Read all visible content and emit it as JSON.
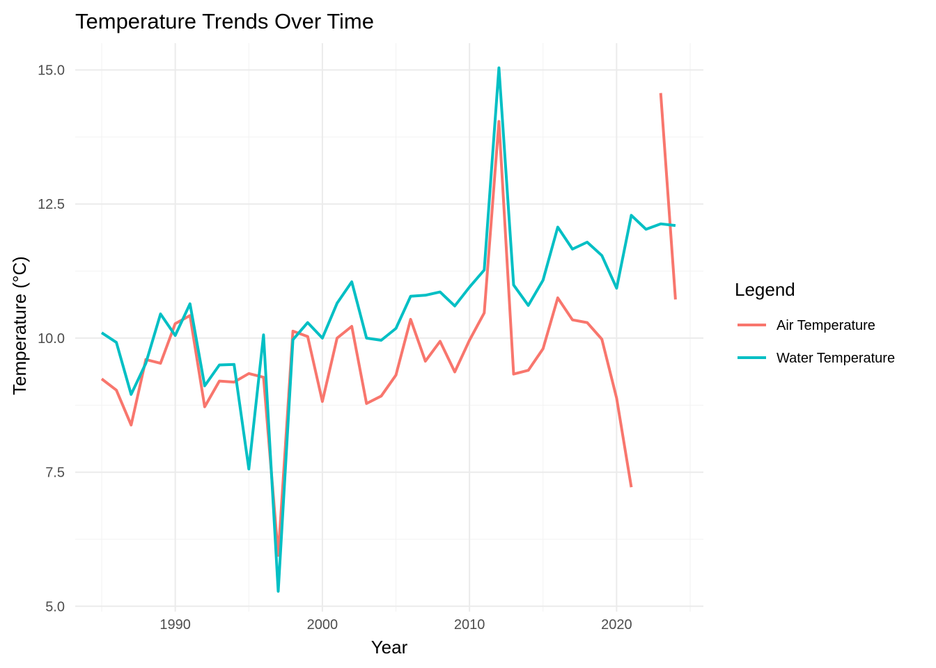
{
  "chart_data": {
    "type": "line",
    "title": "Temperature Trends Over Time",
    "xlabel": "Year",
    "ylabel": "Temperature (°C)",
    "xlim": [
      1983.2,
      2025.9
    ],
    "ylim": [
      4.9,
      15.5
    ],
    "x_ticks": [
      1990,
      2000,
      2010,
      2020
    ],
    "x_tick_labels": [
      "1990",
      "2000",
      "2010",
      "2020"
    ],
    "x_minor_ticks": [
      1985,
      1995,
      2005,
      2015,
      2025
    ],
    "y_ticks": [
      5.0,
      7.5,
      10.0,
      12.5,
      15.0
    ],
    "y_tick_labels": [
      "5.0",
      "7.5",
      "10.0",
      "12.5",
      "15.0"
    ],
    "y_minor_ticks": [
      6.25,
      8.75,
      11.25,
      13.75
    ],
    "grid": true,
    "legend": {
      "title": "Legend",
      "position": "right"
    },
    "x": [
      1985,
      1986,
      1987,
      1988,
      1989,
      1990,
      1991,
      1992,
      1993,
      1994,
      1995,
      1996,
      1997,
      1998,
      1999,
      2000,
      2001,
      2002,
      2003,
      2004,
      2005,
      2006,
      2007,
      2008,
      2009,
      2010,
      2011,
      2012,
      2013,
      2014,
      2015,
      2016,
      2017,
      2018,
      2019,
      2020,
      2021,
      2022,
      2023,
      2024
    ],
    "series": [
      {
        "name": "Air Temperature",
        "color": "#f8766d",
        "values": [
          9.24,
          9.03,
          8.38,
          9.6,
          9.53,
          10.27,
          10.42,
          8.72,
          9.2,
          9.18,
          9.34,
          9.27,
          5.95,
          10.13,
          10.03,
          8.82,
          10.0,
          10.22,
          8.78,
          8.92,
          9.31,
          10.35,
          9.57,
          9.94,
          9.37,
          9.96,
          10.47,
          14.04,
          9.33,
          9.4,
          9.8,
          10.75,
          10.34,
          10.29,
          9.98,
          8.88,
          7.22,
          null,
          14.57,
          10.72
        ]
      },
      {
        "name": "Water Temperature",
        "color": "#00bfc4",
        "values": [
          10.1,
          9.92,
          8.95,
          9.53,
          10.45,
          10.05,
          10.64,
          9.11,
          9.5,
          9.51,
          7.56,
          10.06,
          5.28,
          9.97,
          10.29,
          10.0,
          10.65,
          11.05,
          10.0,
          9.96,
          10.18,
          10.78,
          10.8,
          10.86,
          10.6,
          10.95,
          11.27,
          15.04,
          10.99,
          10.61,
          11.08,
          12.07,
          11.66,
          11.79,
          11.54,
          10.93,
          12.29,
          12.03,
          12.13,
          12.1
        ]
      }
    ]
  }
}
